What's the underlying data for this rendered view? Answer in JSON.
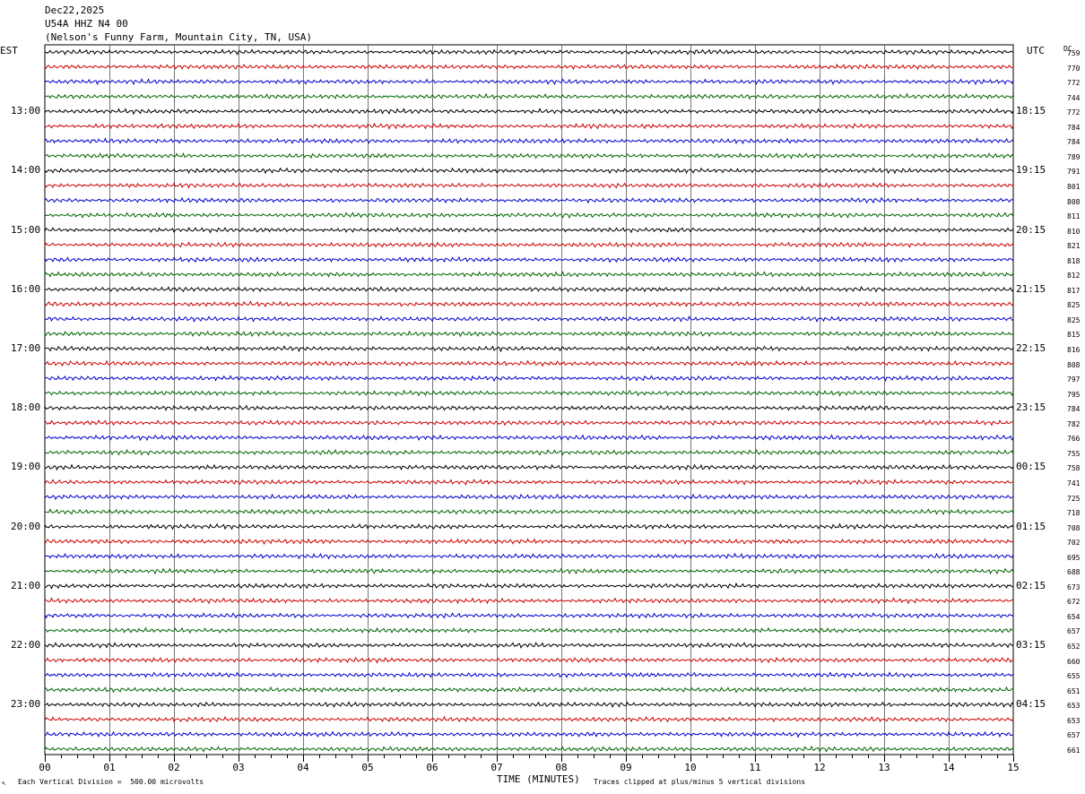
{
  "header": {
    "date": "Dec22,2025",
    "station": "U54A HHZ N4 00",
    "location": "(Nelson's Funny Farm, Mountain City, TN, USA)"
  },
  "left_axis_title": "EST",
  "right_axis_title": "UTC",
  "dc_title": "DC",
  "footer": {
    "scale_marker": "↖",
    "division_note": "Each Vertical Division =  500.00 microvolts",
    "xlabel": "TIME (MINUTES)",
    "clip_note": "Traces clipped at plus/minus 5 vertical divisions"
  },
  "colors": {
    "trace_cycle": [
      "#000000",
      "#cc0000",
      "#0000cc",
      "#006600"
    ],
    "grid": "#000000"
  },
  "chart_data": {
    "type": "line",
    "title": "",
    "xlabel": "TIME (MINUTES)",
    "xlim": [
      0,
      15
    ],
    "x_ticks": [
      "00",
      "01",
      "02",
      "03",
      "04",
      "05",
      "06",
      "07",
      "08",
      "09",
      "10",
      "11",
      "12",
      "13",
      "14",
      "15"
    ],
    "left_time_labels": [
      {
        "row": 4,
        "text": "13:00"
      },
      {
        "row": 8,
        "text": "14:00"
      },
      {
        "row": 12,
        "text": "15:00"
      },
      {
        "row": 16,
        "text": "16:00"
      },
      {
        "row": 20,
        "text": "17:00"
      },
      {
        "row": 24,
        "text": "18:00"
      },
      {
        "row": 28,
        "text": "19:00"
      },
      {
        "row": 32,
        "text": "20:00"
      },
      {
        "row": 36,
        "text": "21:00"
      },
      {
        "row": 40,
        "text": "22:00"
      },
      {
        "row": 44,
        "text": "23:00"
      }
    ],
    "right_time_labels": [
      {
        "row": 4,
        "text": "18:15"
      },
      {
        "row": 8,
        "text": "19:15"
      },
      {
        "row": 12,
        "text": "20:15"
      },
      {
        "row": 16,
        "text": "21:15"
      },
      {
        "row": 20,
        "text": "22:15"
      },
      {
        "row": 24,
        "text": "23:15"
      },
      {
        "row": 28,
        "text": "00:15"
      },
      {
        "row": 32,
        "text": "01:15"
      },
      {
        "row": 36,
        "text": "02:15"
      },
      {
        "row": 40,
        "text": "03:15"
      },
      {
        "row": 44,
        "text": "04:15"
      }
    ],
    "dc_offsets": [
      759,
      770,
      772,
      744,
      772,
      784,
      784,
      789,
      791,
      801,
      808,
      811,
      810,
      821,
      818,
      812,
      817,
      825,
      825,
      815,
      816,
      808,
      797,
      795,
      784,
      782,
      766,
      755,
      758,
      741,
      725,
      718,
      708,
      702,
      695,
      688,
      673,
      672,
      654,
      657,
      652,
      660,
      655,
      651,
      653,
      653,
      657,
      661
    ],
    "trace_rows": 48
  }
}
